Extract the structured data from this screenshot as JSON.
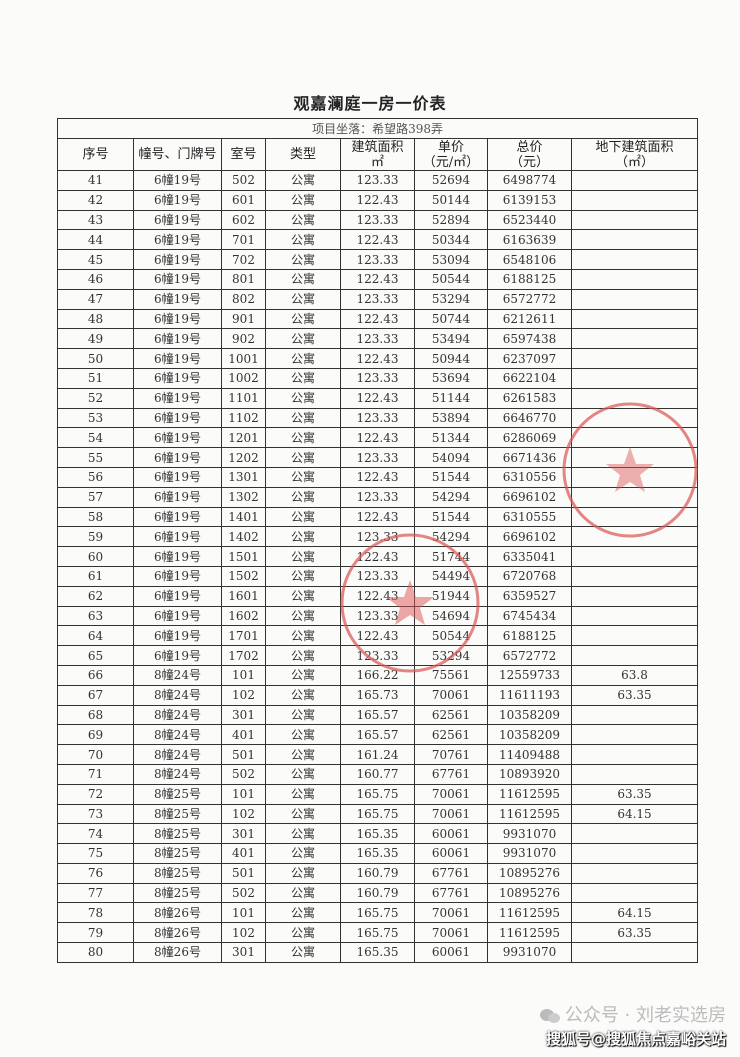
{
  "document": {
    "title": "观嘉澜庭一房一价表",
    "location": "项目坐落：希望路398弄",
    "headers": [
      "序号",
      "幢号、门牌号",
      "室号",
      "类型",
      "建筑面积\n㎡",
      "单价\n（元/㎡）",
      "总价\n（元）",
      "地下建筑面积\n（㎡）"
    ],
    "rows": [
      [
        "41",
        "6幢19号",
        "502",
        "公寓",
        "123.33",
        "52694",
        "6498774",
        ""
      ],
      [
        "42",
        "6幢19号",
        "601",
        "公寓",
        "122.43",
        "50144",
        "6139153",
        ""
      ],
      [
        "43",
        "6幢19号",
        "602",
        "公寓",
        "123.33",
        "52894",
        "6523440",
        ""
      ],
      [
        "44",
        "6幢19号",
        "701",
        "公寓",
        "122.43",
        "50344",
        "6163639",
        ""
      ],
      [
        "45",
        "6幢19号",
        "702",
        "公寓",
        "123.33",
        "53094",
        "6548106",
        ""
      ],
      [
        "46",
        "6幢19号",
        "801",
        "公寓",
        "122.43",
        "50544",
        "6188125",
        ""
      ],
      [
        "47",
        "6幢19号",
        "802",
        "公寓",
        "123.33",
        "53294",
        "6572772",
        ""
      ],
      [
        "48",
        "6幢19号",
        "901",
        "公寓",
        "122.43",
        "50744",
        "6212611",
        ""
      ],
      [
        "49",
        "6幢19号",
        "902",
        "公寓",
        "123.33",
        "53494",
        "6597438",
        ""
      ],
      [
        "50",
        "6幢19号",
        "1001",
        "公寓",
        "122.43",
        "50944",
        "6237097",
        ""
      ],
      [
        "51",
        "6幢19号",
        "1002",
        "公寓",
        "123.33",
        "53694",
        "6622104",
        ""
      ],
      [
        "52",
        "6幢19号",
        "1101",
        "公寓",
        "122.43",
        "51144",
        "6261583",
        ""
      ],
      [
        "53",
        "6幢19号",
        "1102",
        "公寓",
        "123.33",
        "53894",
        "6646770",
        ""
      ],
      [
        "54",
        "6幢19号",
        "1201",
        "公寓",
        "122.43",
        "51344",
        "6286069",
        ""
      ],
      [
        "55",
        "6幢19号",
        "1202",
        "公寓",
        "123.33",
        "54094",
        "6671436",
        ""
      ],
      [
        "56",
        "6幢19号",
        "1301",
        "公寓",
        "122.43",
        "51544",
        "6310556",
        ""
      ],
      [
        "57",
        "6幢19号",
        "1302",
        "公寓",
        "123.33",
        "54294",
        "6696102",
        ""
      ],
      [
        "58",
        "6幢19号",
        "1401",
        "公寓",
        "122.43",
        "51544",
        "6310555",
        ""
      ],
      [
        "59",
        "6幢19号",
        "1402",
        "公寓",
        "123.33",
        "54294",
        "6696102",
        ""
      ],
      [
        "60",
        "6幢19号",
        "1501",
        "公寓",
        "122.43",
        "51744",
        "6335041",
        ""
      ],
      [
        "61",
        "6幢19号",
        "1502",
        "公寓",
        "123.33",
        "54494",
        "6720768",
        ""
      ],
      [
        "62",
        "6幢19号",
        "1601",
        "公寓",
        "122.43",
        "51944",
        "6359527",
        ""
      ],
      [
        "63",
        "6幢19号",
        "1602",
        "公寓",
        "123.33",
        "54694",
        "6745434",
        ""
      ],
      [
        "64",
        "6幢19号",
        "1701",
        "公寓",
        "122.43",
        "50544",
        "6188125",
        ""
      ],
      [
        "65",
        "6幢19号",
        "1702",
        "公寓",
        "123.33",
        "53294",
        "6572772",
        ""
      ],
      [
        "66",
        "8幢24号",
        "101",
        "公寓",
        "166.22",
        "75561",
        "12559733",
        "63.8"
      ],
      [
        "67",
        "8幢24号",
        "102",
        "公寓",
        "165.73",
        "70061",
        "11611193",
        "63.35"
      ],
      [
        "68",
        "8幢24号",
        "301",
        "公寓",
        "165.57",
        "62561",
        "10358209",
        ""
      ],
      [
        "69",
        "8幢24号",
        "401",
        "公寓",
        "165.57",
        "62561",
        "10358209",
        ""
      ],
      [
        "70",
        "8幢24号",
        "501",
        "公寓",
        "161.24",
        "70761",
        "11409488",
        ""
      ],
      [
        "71",
        "8幢24号",
        "502",
        "公寓",
        "160.77",
        "67761",
        "10893920",
        ""
      ],
      [
        "72",
        "8幢25号",
        "101",
        "公寓",
        "165.75",
        "70061",
        "11612595",
        "63.35"
      ],
      [
        "73",
        "8幢25号",
        "102",
        "公寓",
        "165.75",
        "70061",
        "11612595",
        "64.15"
      ],
      [
        "74",
        "8幢25号",
        "301",
        "公寓",
        "165.35",
        "60061",
        "9931070",
        ""
      ],
      [
        "75",
        "8幢25号",
        "401",
        "公寓",
        "165.35",
        "60061",
        "9931070",
        ""
      ],
      [
        "76",
        "8幢25号",
        "501",
        "公寓",
        "160.79",
        "67761",
        "10895276",
        ""
      ],
      [
        "77",
        "8幢25号",
        "502",
        "公寓",
        "160.79",
        "67761",
        "10895276",
        ""
      ],
      [
        "78",
        "8幢26号",
        "101",
        "公寓",
        "165.75",
        "70061",
        "11612595",
        "64.15"
      ],
      [
        "79",
        "8幢26号",
        "102",
        "公寓",
        "165.75",
        "70061",
        "11612595",
        "63.35"
      ],
      [
        "80",
        "8幢26号",
        "301",
        "公寓",
        "165.35",
        "60061",
        "9931070",
        ""
      ]
    ]
  },
  "watermark": {
    "wechat_icon": "wechat-icon",
    "account": "公众号 · 刘老实选房",
    "sohu": "搜狐号@搜狐焦点嘉峪关站"
  },
  "stamp_color": "#d9534f"
}
